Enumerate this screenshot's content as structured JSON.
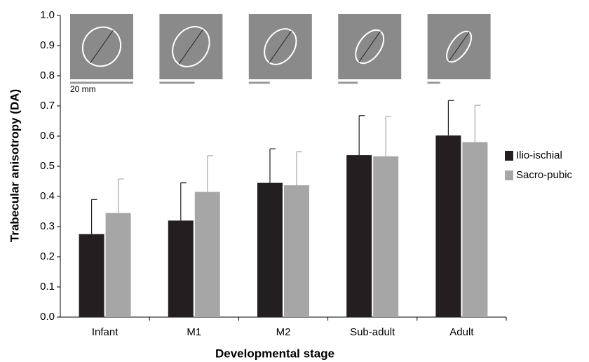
{
  "chart_data": {
    "type": "bar",
    "x_label": "Developmental stage",
    "y_label": "Trabecular anisotropy (DA)",
    "annotations": [
      "20 mm"
    ],
    "categories": [
      "Infant",
      "M1",
      "M2",
      "Sub-adult",
      "Adult"
    ],
    "series": [
      {
        "name": "Ilio-ischial",
        "color": "#231f20",
        "values": [
          0.275,
          0.32,
          0.445,
          0.537,
          0.602
        ],
        "errors": [
          0.115,
          0.125,
          0.113,
          0.131,
          0.116
        ]
      },
      {
        "name": "Sacro-pubic",
        "color": "#a6a6a6",
        "values": [
          0.345,
          0.415,
          0.437,
          0.533,
          0.58
        ],
        "errors": [
          0.113,
          0.12,
          0.111,
          0.132,
          0.122
        ]
      }
    ],
    "ylim": [
      0,
      1
    ],
    "yticks": [
      {
        "value": 0,
        "label": "0.0"
      },
      0.1,
      0.2,
      0.3,
      0.4,
      0.5,
      0.6,
      0.7,
      0.8,
      0.9,
      {
        "value": 1,
        "label": "1.0"
      }
    ],
    "legend": "right"
  }
}
